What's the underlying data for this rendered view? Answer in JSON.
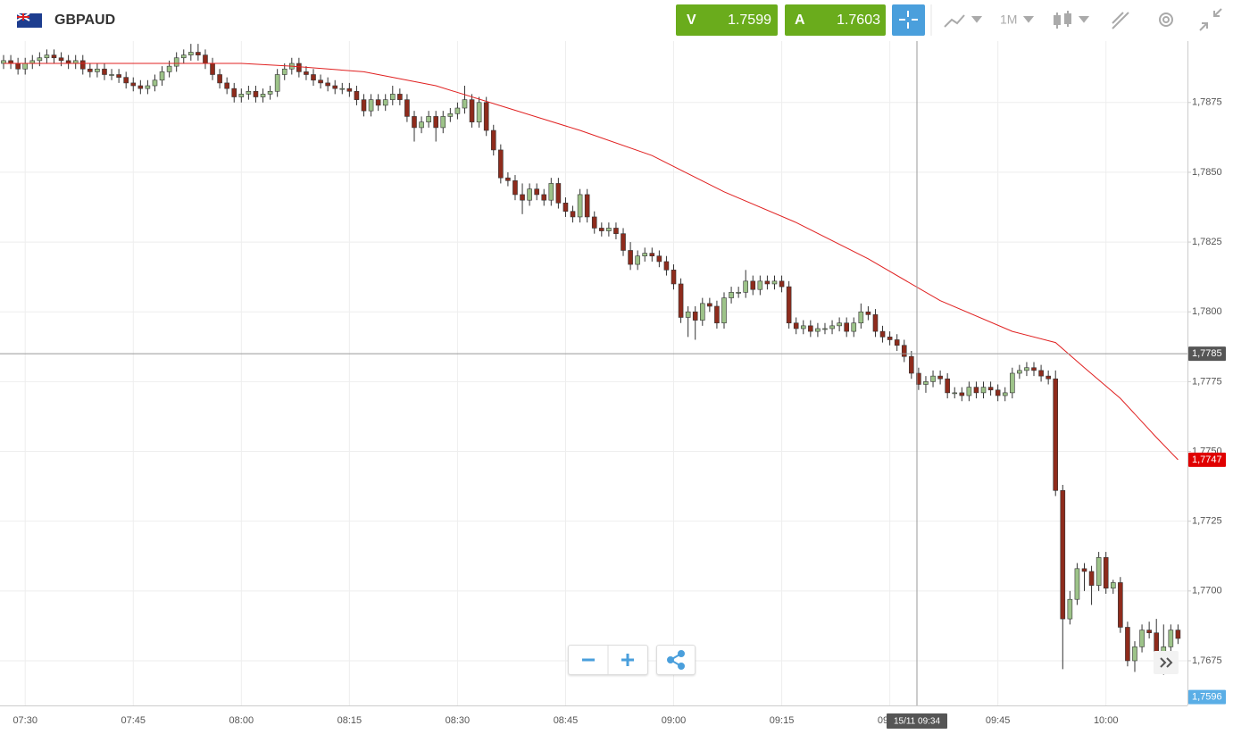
{
  "header": {
    "symbol": "GBPAUD",
    "sell_label": "V",
    "sell_price": "1.7599",
    "buy_label": "A",
    "buy_price": "1.7603",
    "timeframe": "1M"
  },
  "chart_data": {
    "type": "candlestick",
    "categories": [
      null,
      null,
      null,
      "07:30",
      null,
      null,
      null,
      null,
      null,
      null,
      null,
      null,
      null,
      null,
      null,
      null,
      null,
      null,
      "07:45",
      null,
      null,
      null,
      null,
      null,
      null,
      null,
      null,
      null,
      null,
      null,
      null,
      null,
      null,
      "08:00",
      null,
      null,
      null,
      null,
      null,
      null,
      null,
      null,
      null,
      null,
      null,
      null,
      null,
      null,
      "08:15",
      null,
      null,
      null,
      null,
      null,
      null,
      null,
      null,
      null,
      null,
      null,
      null,
      null,
      null,
      "08:30",
      null,
      null,
      null,
      null,
      null,
      null,
      null,
      null,
      null,
      null,
      null,
      null,
      null,
      null,
      "08:45",
      null,
      null,
      null,
      null,
      null,
      null,
      null,
      null,
      null,
      null,
      null,
      null,
      null,
      null,
      "09:00",
      null,
      null,
      null,
      null,
      null,
      null,
      null,
      null,
      null,
      null,
      null,
      null,
      null,
      null,
      "09:15",
      null,
      null,
      null,
      null,
      null,
      null,
      null,
      null,
      null,
      null,
      null,
      null,
      null,
      null,
      "09:30",
      null,
      null,
      null,
      null,
      null,
      null,
      null,
      null,
      null,
      null,
      null,
      null,
      null,
      null,
      "09:45",
      null,
      null,
      null,
      null,
      null,
      null,
      null,
      null,
      null,
      null,
      null,
      null,
      null,
      null,
      "10:00",
      null,
      null,
      null,
      null,
      null,
      null,
      null,
      null,
      null,
      null
    ],
    "open": [
      1.7889,
      1.789,
      1.7889,
      1.7887,
      1.7889,
      1.789,
      1.7891,
      1.7892,
      1.7891,
      1.789,
      1.7889,
      1.789,
      1.7887,
      1.7886,
      1.7887,
      1.7885,
      1.7885,
      1.7884,
      1.7882,
      1.7881,
      1.788,
      1.7881,
      1.7883,
      1.7886,
      1.7888,
      1.7891,
      1.7892,
      1.7893,
      1.7892,
      1.7889,
      1.7885,
      1.7882,
      1.788,
      1.7877,
      1.7878,
      1.7879,
      1.7877,
      1.7878,
      1.7879,
      1.7885,
      1.7887,
      1.7889,
      1.7886,
      1.7885,
      1.7883,
      1.7882,
      1.7881,
      1.788,
      1.788,
      1.7879,
      1.7876,
      1.7872,
      1.7876,
      1.7874,
      1.7876,
      1.7878,
      1.7876,
      1.787,
      1.7866,
      1.7868,
      1.787,
      1.7866,
      1.787,
      1.7871,
      1.7873,
      1.7876,
      1.7868,
      1.7875,
      1.7865,
      1.7858,
      1.7848,
      1.7847,
      1.7842,
      1.784,
      1.7844,
      1.7842,
      1.784,
      1.7846,
      1.7839,
      1.7836,
      1.7834,
      1.7842,
      1.7834,
      1.783,
      1.7829,
      1.783,
      1.7828,
      1.7822,
      1.7817,
      1.782,
      1.7821,
      1.782,
      1.7818,
      1.7815,
      1.781,
      1.7798,
      1.78,
      1.7797,
      1.7803,
      1.7802,
      1.7796,
      1.7805,
      1.7807,
      1.7807,
      1.7811,
      1.7808,
      1.7811,
      1.781,
      1.7811,
      1.7809,
      1.7796,
      1.7794,
      1.7795,
      1.7793,
      1.7794,
      1.7794,
      1.7795,
      1.7796,
      1.7793,
      1.7796,
      1.78,
      1.7799,
      1.7793,
      1.7791,
      1.779,
      1.7788,
      1.7784,
      1.7778,
      1.7774,
      1.7775,
      1.7777,
      1.7776,
      1.7771,
      1.7771,
      1.777,
      1.7773,
      1.7771,
      1.7773,
      1.7772,
      1.777,
      1.7771,
      1.7778,
      1.7779,
      1.778,
      1.7779,
      1.7777,
      1.7776,
      1.7736,
      1.769,
      1.7697,
      1.7708,
      1.7707,
      1.7702,
      1.7712,
      1.7701,
      1.7703,
      1.7687,
      1.7675,
      1.768,
      1.7686,
      1.7685,
      1.7676,
      1.768,
      1.7686
    ],
    "high": [
      1.7892,
      1.7892,
      1.7891,
      1.7891,
      1.7892,
      1.7893,
      1.7894,
      1.7894,
      1.7893,
      1.7892,
      1.7892,
      1.7892,
      1.7889,
      1.7889,
      1.7889,
      1.7887,
      1.7887,
      1.7886,
      1.7884,
      1.7883,
      1.7883,
      1.7885,
      1.7888,
      1.789,
      1.7893,
      1.7894,
      1.7896,
      1.7896,
      1.7894,
      1.7891,
      1.7887,
      1.7884,
      1.7882,
      1.788,
      1.7881,
      1.7881,
      1.788,
      1.7881,
      1.7887,
      1.7889,
      1.7891,
      1.7891,
      1.7888,
      1.7887,
      1.7885,
      1.7884,
      1.7883,
      1.7882,
      1.7882,
      1.7881,
      1.7878,
      1.7878,
      1.7878,
      1.7878,
      1.7881,
      1.788,
      1.7878,
      1.7872,
      1.787,
      1.7872,
      1.7872,
      1.7872,
      1.7873,
      1.7875,
      1.7881,
      1.7878,
      1.7877,
      1.7877,
      1.7867,
      1.786,
      1.785,
      1.7849,
      1.7846,
      1.7846,
      1.7846,
      1.7844,
      1.7848,
      1.7848,
      1.7841,
      1.7838,
      1.7844,
      1.7844,
      1.7836,
      1.7832,
      1.7832,
      1.7832,
      1.783,
      1.7825,
      1.7822,
      1.7823,
      1.7823,
      1.7822,
      1.782,
      1.7817,
      1.7812,
      1.7802,
      1.7802,
      1.7805,
      1.7805,
      1.7804,
      1.7807,
      1.7809,
      1.7809,
      1.7815,
      1.7813,
      1.7813,
      1.7813,
      1.7813,
      1.7813,
      1.7811,
      1.7798,
      1.7797,
      1.7797,
      1.7796,
      1.7796,
      1.7797,
      1.7798,
      1.7798,
      1.7798,
      1.7803,
      1.7802,
      1.7801,
      1.7795,
      1.7793,
      1.7792,
      1.779,
      1.7786,
      1.778,
      1.7777,
      1.7779,
      1.7779,
      1.7778,
      1.7773,
      1.7773,
      1.7775,
      1.7775,
      1.7775,
      1.7775,
      1.7774,
      1.7773,
      1.778,
      1.7781,
      1.7782,
      1.7782,
      1.7781,
      1.7779,
      1.7779,
      1.7738,
      1.77,
      1.771,
      1.771,
      1.7709,
      1.7714,
      1.7714,
      1.7704,
      1.7705,
      1.7689,
      1.7682,
      1.7688,
      1.7689,
      1.769,
      1.7688,
      1.7688,
      1.7688
    ],
    "low": [
      1.7887,
      1.7887,
      1.7885,
      1.7885,
      1.7887,
      1.7888,
      1.7889,
      1.7889,
      1.7888,
      1.7887,
      1.7887,
      1.7885,
      1.7884,
      1.7884,
      1.7883,
      1.7883,
      1.7882,
      1.788,
      1.7879,
      1.7878,
      1.7878,
      1.7879,
      1.7881,
      1.7884,
      1.7886,
      1.7889,
      1.789,
      1.789,
      1.7887,
      1.7883,
      1.788,
      1.7878,
      1.7875,
      1.7875,
      1.7876,
      1.7875,
      1.7875,
      1.7876,
      1.7877,
      1.7883,
      1.7885,
      1.7884,
      1.7883,
      1.7881,
      1.788,
      1.7879,
      1.7878,
      1.7878,
      1.7877,
      1.7874,
      1.787,
      1.787,
      1.7872,
      1.7872,
      1.7874,
      1.7874,
      1.7868,
      1.7861,
      1.7864,
      1.7866,
      1.7861,
      1.7864,
      1.7868,
      1.7869,
      1.7871,
      1.7866,
      1.7866,
      1.7863,
      1.7856,
      1.7846,
      1.7845,
      1.784,
      1.7835,
      1.7838,
      1.784,
      1.7838,
      1.7838,
      1.7837,
      1.7834,
      1.7832,
      1.7832,
      1.7832,
      1.7828,
      1.7827,
      1.7827,
      1.7826,
      1.782,
      1.7815,
      1.7815,
      1.7818,
      1.7818,
      1.7816,
      1.7813,
      1.7808,
      1.7796,
      1.7791,
      1.779,
      1.7795,
      1.78,
      1.7794,
      1.7794,
      1.7803,
      1.7805,
      1.7805,
      1.7806,
      1.7806,
      1.7808,
      1.7808,
      1.7807,
      1.7794,
      1.7792,
      1.7792,
      1.7791,
      1.7791,
      1.7792,
      1.7792,
      1.7793,
      1.7791,
      1.7791,
      1.7794,
      1.7797,
      1.7791,
      1.7789,
      1.7788,
      1.7786,
      1.7782,
      1.7776,
      1.7772,
      1.7771,
      1.7773,
      1.7774,
      1.7769,
      1.7769,
      1.7768,
      1.7768,
      1.7769,
      1.7769,
      1.777,
      1.7768,
      1.7768,
      1.7769,
      1.7776,
      1.7777,
      1.7777,
      1.7775,
      1.7774,
      1.7734,
      1.7672,
      1.7688,
      1.7695,
      1.77,
      1.7695,
      1.77,
      1.7699,
      1.7699,
      1.7685,
      1.7673,
      1.7671,
      1.7678,
      1.7683,
      1.7672,
      1.767,
      1.7678,
      1.7681
    ],
    "close": [
      1.789,
      1.7889,
      1.7887,
      1.7889,
      1.789,
      1.7891,
      1.7892,
      1.7891,
      1.789,
      1.7889,
      1.789,
      1.7887,
      1.7886,
      1.7887,
      1.7885,
      1.7885,
      1.7884,
      1.7882,
      1.7881,
      1.788,
      1.7881,
      1.7883,
      1.7886,
      1.7888,
      1.7891,
      1.7892,
      1.7893,
      1.7892,
      1.7889,
      1.7885,
      1.7882,
      1.788,
      1.7877,
      1.7878,
      1.7879,
      1.7877,
      1.7878,
      1.7879,
      1.7885,
      1.7887,
      1.7889,
      1.7886,
      1.7885,
      1.7883,
      1.7882,
      1.7881,
      1.788,
      1.788,
      1.7879,
      1.7876,
      1.7872,
      1.7876,
      1.7874,
      1.7876,
      1.7878,
      1.7876,
      1.787,
      1.7866,
      1.7868,
      1.787,
      1.7866,
      1.787,
      1.7871,
      1.7873,
      1.7876,
      1.7868,
      1.7875,
      1.7865,
      1.7858,
      1.7848,
      1.7847,
      1.7842,
      1.784,
      1.7844,
      1.7842,
      1.784,
      1.7846,
      1.7839,
      1.7836,
      1.7834,
      1.7842,
      1.7834,
      1.783,
      1.7829,
      1.783,
      1.7828,
      1.7822,
      1.7817,
      1.782,
      1.7821,
      1.782,
      1.7818,
      1.7815,
      1.781,
      1.7798,
      1.78,
      1.7797,
      1.7803,
      1.7802,
      1.7796,
      1.7805,
      1.7807,
      1.7807,
      1.7811,
      1.7808,
      1.7811,
      1.781,
      1.7811,
      1.7809,
      1.7796,
      1.7794,
      1.7795,
      1.7793,
      1.7794,
      1.7794,
      1.7795,
      1.7796,
      1.7793,
      1.7796,
      1.78,
      1.7799,
      1.7793,
      1.7791,
      1.779,
      1.7788,
      1.7784,
      1.7778,
      1.7774,
      1.7775,
      1.7777,
      1.7776,
      1.7771,
      1.7771,
      1.777,
      1.7773,
      1.7771,
      1.7773,
      1.7772,
      1.777,
      1.7771,
      1.7778,
      1.7779,
      1.778,
      1.7779,
      1.7777,
      1.7776,
      1.7736,
      1.769,
      1.7697,
      1.7708,
      1.7707,
      1.7702,
      1.7712,
      1.7701,
      1.7703,
      1.7687,
      1.7675,
      1.768,
      1.7686,
      1.7685,
      1.7676,
      1.768,
      1.7686,
      1.7683
    ],
    "up_color": "#9dc389",
    "down_color": "#8e2b1c",
    "ma": {
      "color": "#e02020",
      "x": [
        0,
        10,
        20,
        33,
        40,
        50,
        60,
        70,
        80,
        90,
        100,
        110,
        120,
        130,
        140,
        146,
        150,
        155,
        160,
        163
      ],
      "values": [
        1.7889,
        1.7889,
        1.7889,
        1.7889,
        1.7888,
        1.7886,
        1.7881,
        1.7873,
        1.7865,
        1.7856,
        1.7843,
        1.7832,
        1.7819,
        1.7804,
        1.7793,
        1.7789,
        1.778,
        1.7769,
        1.7755,
        1.7747
      ]
    },
    "ylim": [
      1.7659,
      1.7897
    ],
    "yticks": [
      {
        "value": 1.7675,
        "label": "1,7675"
      },
      {
        "value": 1.77,
        "label": "1,7700"
      },
      {
        "value": 1.7725,
        "label": "1,7725"
      },
      {
        "value": 1.775,
        "label": "1,7750"
      },
      {
        "value": 1.7775,
        "label": "1,7775"
      },
      {
        "value": 1.78,
        "label": "1,7800"
      },
      {
        "value": 1.7825,
        "label": "1,7825"
      },
      {
        "value": 1.785,
        "label": "1,7850"
      },
      {
        "value": 1.7875,
        "label": "1,7875"
      }
    ],
    "grid": true,
    "crosshair": {
      "time": "15/11 09:34",
      "price": {
        "value": 1.7785,
        "label": "1,7785"
      }
    },
    "ma_last": {
      "value": 1.7747,
      "label": "1,7747"
    },
    "bid_marker": {
      "value": 1.7596,
      "label": "1,7596"
    }
  }
}
